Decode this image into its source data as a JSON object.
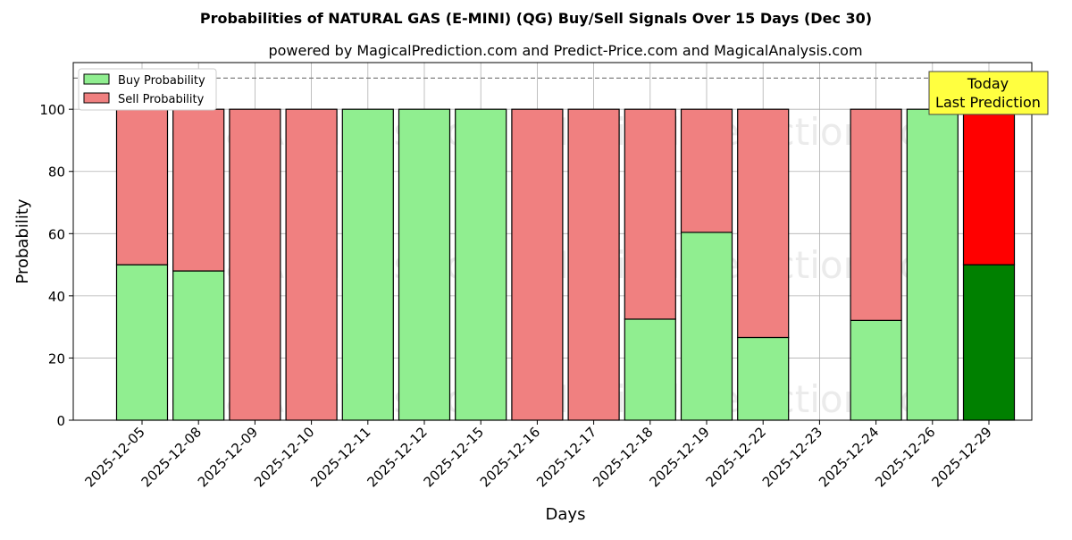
{
  "chart_data": {
    "type": "bar",
    "stacked": true,
    "title": "Probabilities of NATURAL GAS (E-MINI) (QG) Buy/Sell Signals Over 15 Days (Dec 30)",
    "subtitle": "powered by MagicalPrediction.com and Predict-Price.com and MagicalAnalysis.com",
    "xlabel": "Days",
    "ylabel": "Probability",
    "ylim": [
      0,
      115
    ],
    "yticks": [
      0,
      20,
      40,
      60,
      80,
      100
    ],
    "categories": [
      "2025-12-05",
      "2025-12-08",
      "2025-12-09",
      "2025-12-10",
      "2025-12-11",
      "2025-12-12",
      "2025-12-15",
      "2025-12-16",
      "2025-12-17",
      "2025-12-18",
      "2025-12-19",
      "2025-12-22",
      "2025-12-23",
      "2025-12-24",
      "2025-12-26",
      "2025-12-29"
    ],
    "series": [
      {
        "name": "Buy Probability",
        "color": "#90ee90",
        "values": [
          50,
          48,
          0,
          0,
          100,
          100,
          100,
          0,
          0,
          32.5,
          60.4,
          26.6,
          0,
          32.1,
          100,
          50
        ]
      },
      {
        "name": "Sell Probability",
        "color": "#f08080",
        "values": [
          50,
          52,
          100,
          100,
          0,
          0,
          0,
          100,
          100,
          67.5,
          39.6,
          73.4,
          0,
          67.9,
          0,
          50
        ]
      }
    ],
    "highlight": {
      "index": 15,
      "buy_color": "#008000",
      "sell_color": "#ff0000"
    },
    "reference_line": 110,
    "annotation": [
      "Today",
      "Last Prediction"
    ],
    "legend": "top-left",
    "grid": true,
    "watermarks": [
      "MagicalAnalysis.com",
      "MagicalPrediction.com"
    ]
  }
}
